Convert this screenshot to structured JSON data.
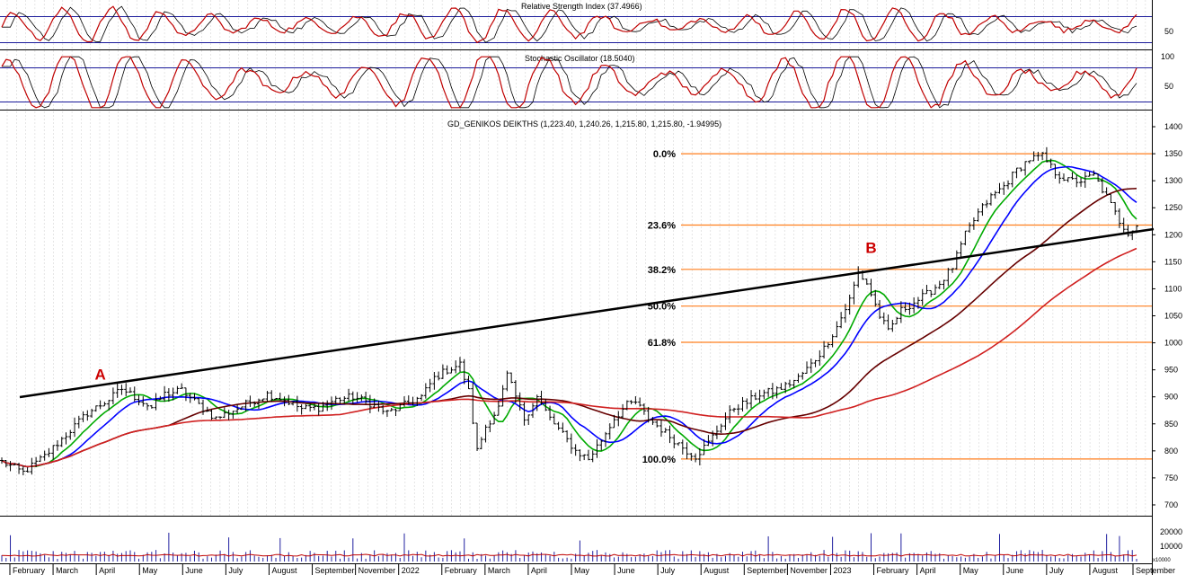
{
  "panels": {
    "rsi": {
      "title": "Relative Strength Index (37.4966)",
      "levels": [
        70,
        30
      ],
      "tick_labels": [
        "50"
      ]
    },
    "stoch": {
      "title": "Stochastic Oscillator (18.5040)",
      "levels": [
        80,
        20
      ],
      "tick_labels": [
        "100",
        "50"
      ]
    },
    "price": {
      "title": "GD_GENIKOS DEIKTHS (1,223.40, 1,240.26, 1,215.80, 1,215.80, -1.94995)"
    },
    "volume": {
      "tick_labels": [
        "20000",
        "10000"
      ],
      "unit_label": "x10000"
    }
  },
  "chart_data": {
    "type": "candlestick",
    "title": "GD_GENIKOS DEIKTHS (1,223.40, 1,240.26, 1,215.80, 1,215.80, -1.94995)",
    "ylim": [
      680,
      1430
    ],
    "y_ticks": [
      700,
      750,
      800,
      850,
      900,
      950,
      1000,
      1050,
      1100,
      1150,
      1200,
      1250,
      1300,
      1350,
      1400
    ],
    "x_labels": [
      "February",
      "March",
      "April",
      "May",
      "June",
      "July",
      "August",
      "September",
      "November",
      "2022",
      "February",
      "March",
      "April",
      "May",
      "June",
      "July",
      "August",
      "September",
      "November",
      "2023",
      "February",
      "April",
      "May",
      "June",
      "July",
      "August",
      "September"
    ],
    "price_path": [
      [
        0,
        780
      ],
      [
        5,
        760
      ],
      [
        10,
        790
      ],
      [
        15,
        830
      ],
      [
        20,
        870
      ],
      [
        25,
        895
      ],
      [
        28,
        915
      ],
      [
        31,
        900
      ],
      [
        35,
        880
      ],
      [
        38,
        905
      ],
      [
        42,
        912
      ],
      [
        46,
        885
      ],
      [
        50,
        860
      ],
      [
        54,
        875
      ],
      [
        58,
        890
      ],
      [
        62,
        905
      ],
      [
        66,
        895
      ],
      [
        70,
        878
      ],
      [
        74,
        880
      ],
      [
        78,
        895
      ],
      [
        82,
        900
      ],
      [
        86,
        888
      ],
      [
        90,
        870
      ],
      [
        94,
        885
      ],
      [
        98,
        900
      ],
      [
        101,
        935
      ],
      [
        104,
        950
      ],
      [
        107,
        960
      ],
      [
        109,
        910
      ],
      [
        111,
        800
      ],
      [
        113,
        845
      ],
      [
        116,
        880
      ],
      [
        118,
        940
      ],
      [
        120,
        900
      ],
      [
        122,
        860
      ],
      [
        125,
        900
      ],
      [
        128,
        860
      ],
      [
        131,
        830
      ],
      [
        134,
        800
      ],
      [
        137,
        785
      ],
      [
        140,
        820
      ],
      [
        143,
        860
      ],
      [
        146,
        885
      ],
      [
        148,
        890
      ],
      [
        151,
        860
      ],
      [
        154,
        840
      ],
      [
        157,
        820
      ],
      [
        160,
        800
      ],
      [
        162,
        790
      ],
      [
        165,
        815
      ],
      [
        168,
        850
      ],
      [
        171,
        880
      ],
      [
        174,
        890
      ],
      [
        177,
        905
      ],
      [
        180,
        910
      ],
      [
        183,
        920
      ],
      [
        186,
        935
      ],
      [
        189,
        960
      ],
      [
        192,
        990
      ],
      [
        195,
        1030
      ],
      [
        198,
        1080
      ],
      [
        200,
        1130
      ],
      [
        202,
        1110
      ],
      [
        205,
        1050
      ],
      [
        207,
        1020
      ],
      [
        210,
        1060
      ],
      [
        213,
        1075
      ],
      [
        216,
        1090
      ],
      [
        219,
        1110
      ],
      [
        222,
        1140
      ],
      [
        225,
        1200
      ],
      [
        228,
        1240
      ],
      [
        231,
        1270
      ],
      [
        234,
        1290
      ],
      [
        237,
        1320
      ],
      [
        240,
        1340
      ],
      [
        243,
        1345
      ],
      [
        246,
        1315
      ],
      [
        249,
        1300
      ],
      [
        252,
        1300
      ],
      [
        255,
        1310
      ],
      [
        258,
        1270
      ],
      [
        261,
        1225
      ],
      [
        263,
        1205
      ],
      [
        265,
        1216
      ]
    ],
    "n_bars": 266,
    "moving_averages": [
      {
        "color": "#00aa00"
      },
      {
        "color": "#0000ff"
      },
      {
        "color": "#660000"
      },
      {
        "color": "#d02020"
      }
    ],
    "fibonacci": [
      {
        "label": "0.0%",
        "value": 1350
      },
      {
        "label": "23.6%",
        "value": 1218
      },
      {
        "label": "38.2%",
        "value": 1136
      },
      {
        "label": "50.0%",
        "value": 1068
      },
      {
        "label": "61.8%",
        "value": 1001
      },
      {
        "label": "100.0%",
        "value": 785
      }
    ],
    "trendline": {
      "start": {
        "bar": 5,
        "value": 900
      },
      "end": {
        "bar": 265,
        "value": 1210
      }
    },
    "annotations": [
      {
        "label": "A",
        "bar": 23,
        "value": 940
      },
      {
        "label": "B",
        "bar": 203,
        "value": 1175
      }
    ],
    "colors": {
      "fib": "#ff7f1e",
      "trend": "#000000",
      "candle": "#000000",
      "annotation": "#cc0000",
      "grid": "#cccccc",
      "indicator": "#c00000",
      "indicator_signal": "#000000",
      "level": "#1a1a9a",
      "volume": "#2020a0",
      "volume_ma": "#c00000"
    }
  }
}
